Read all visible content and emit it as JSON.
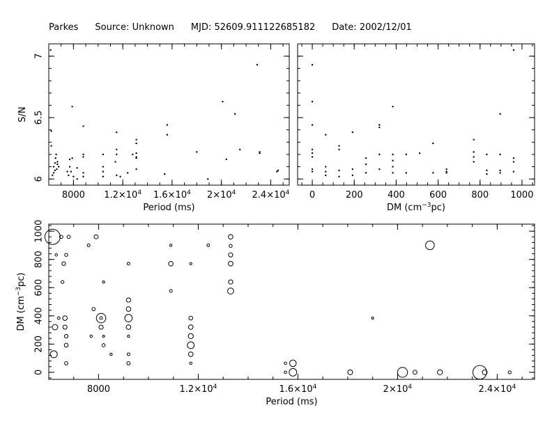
{
  "header": {
    "telescope": "Parkes",
    "source": "Source: Unknown",
    "mjd": "MJD: 52609.911122685182",
    "date": "Date: 2002/12/01"
  },
  "chart_data": [
    {
      "id": "snr-vs-period",
      "type": "scatter",
      "xlabel": "Period (ms)",
      "ylabel": "S/N",
      "xlim": [
        6000,
        25500
      ],
      "ylim": [
        5.95,
        7.1
      ],
      "xticks": [
        8000,
        12000,
        16000,
        20000,
        24000
      ],
      "xtick_labels": [
        [
          "8000",
          ""
        ],
        [
          "1.2×10",
          "4"
        ],
        [
          "1.6×10",
          "4"
        ],
        [
          "2×10",
          "4"
        ],
        [
          "2.4×10",
          "4"
        ]
      ],
      "yticks": [
        6,
        6.5,
        7
      ],
      "ytick_labels": [
        "6",
        "6.5",
        "7"
      ],
      "points": [
        [
          6150,
          7.05
        ],
        [
          6200,
          6.39
        ],
        [
          6200,
          6.27
        ],
        [
          6300,
          6.03
        ],
        [
          6400,
          6.05
        ],
        [
          6400,
          6.1
        ],
        [
          6500,
          6.07
        ],
        [
          6500,
          6.13
        ],
        [
          6550,
          6.17
        ],
        [
          6600,
          6.2
        ],
        [
          6650,
          6.08
        ],
        [
          6700,
          6.12
        ],
        [
          6700,
          6.14
        ],
        [
          6800,
          6.1
        ],
        [
          7500,
          6.06
        ],
        [
          7600,
          6.03
        ],
        [
          7700,
          6.1
        ],
        [
          7700,
          6.16
        ],
        [
          7800,
          6.06
        ],
        [
          7900,
          6.17
        ],
        [
          7900,
          6.59
        ],
        [
          8000,
          6.02
        ],
        [
          8300,
          6.0
        ],
        [
          8300,
          6.09
        ],
        [
          8800,
          6.02
        ],
        [
          8800,
          6.05
        ],
        [
          8800,
          6.18
        ],
        [
          8800,
          6.2
        ],
        [
          8800,
          6.43
        ],
        [
          10400,
          6.02
        ],
        [
          10400,
          6.06
        ],
        [
          10400,
          6.1
        ],
        [
          10400,
          6.2
        ],
        [
          11400,
          6.14
        ],
        [
          11500,
          6.03
        ],
        [
          11500,
          6.2
        ],
        [
          11500,
          6.24
        ],
        [
          11500,
          6.38
        ],
        [
          11800,
          6.02
        ],
        [
          12400,
          6.05
        ],
        [
          12800,
          6.2
        ],
        [
          13100,
          6.08
        ],
        [
          13100,
          6.17
        ],
        [
          13100,
          6.18
        ],
        [
          13100,
          6.21
        ],
        [
          13100,
          6.29
        ],
        [
          13100,
          6.32
        ],
        [
          15400,
          6.04
        ],
        [
          15600,
          6.36
        ],
        [
          15600,
          6.44
        ],
        [
          18000,
          6.22
        ],
        [
          18900,
          6.0
        ],
        [
          20100,
          6.63
        ],
        [
          20400,
          6.16
        ],
        [
          21100,
          6.53
        ],
        [
          21500,
          6.24
        ],
        [
          22900,
          6.93
        ],
        [
          23100,
          6.21
        ],
        [
          23100,
          6.22
        ],
        [
          24500,
          6.06
        ],
        [
          24600,
          6.07
        ]
      ]
    },
    {
      "id": "snr-vs-dm",
      "type": "scatter",
      "xlabel": "DM (cm⁻³pc)",
      "ylabel": "S/N",
      "xlim": [
        -70,
        1060
      ],
      "ylim": [
        5.95,
        7.1
      ],
      "xticks": [
        0,
        200,
        400,
        600,
        800,
        1000
      ],
      "xtick_labels": [
        "0",
        "200",
        "400",
        "600",
        "800",
        "1000"
      ],
      "yticks": [
        6,
        6.5,
        7
      ],
      "points": [
        [
          0,
          6.93
        ],
        [
          0,
          6.63
        ],
        [
          0,
          6.44
        ],
        [
          0,
          6.24
        ],
        [
          0,
          6.21
        ],
        [
          0,
          6.18
        ],
        [
          0,
          6.08
        ],
        [
          0,
          6.06
        ],
        [
          64,
          6.36
        ],
        [
          64,
          6.1
        ],
        [
          64,
          6.06
        ],
        [
          64,
          6.03
        ],
        [
          128,
          6.27
        ],
        [
          128,
          6.24
        ],
        [
          128,
          6.07
        ],
        [
          128,
          6.02
        ],
        [
          192,
          6.38
        ],
        [
          192,
          6.08
        ],
        [
          192,
          6.03
        ],
        [
          256,
          6.17
        ],
        [
          256,
          6.12
        ],
        [
          256,
          6.05
        ],
        [
          320,
          6.44
        ],
        [
          320,
          6.42
        ],
        [
          320,
          6.2
        ],
        [
          320,
          6.08
        ],
        [
          384,
          6.59
        ],
        [
          384,
          6.2
        ],
        [
          384,
          6.15
        ],
        [
          384,
          6.1
        ],
        [
          384,
          6.05
        ],
        [
          448,
          6.2
        ],
        [
          448,
          6.05
        ],
        [
          512,
          6.21
        ],
        [
          576,
          6.29
        ],
        [
          576,
          6.05
        ],
        [
          640,
          6.08
        ],
        [
          640,
          6.06
        ],
        [
          640,
          6.05
        ],
        [
          770,
          6.32
        ],
        [
          770,
          6.22
        ],
        [
          770,
          6.18
        ],
        [
          770,
          6.14
        ],
        [
          832,
          6.2
        ],
        [
          832,
          6.07
        ],
        [
          832,
          6.04
        ],
        [
          896,
          6.53
        ],
        [
          896,
          6.2
        ],
        [
          896,
          6.07
        ],
        [
          896,
          6.05
        ],
        [
          960,
          7.05
        ],
        [
          960,
          6.17
        ],
        [
          960,
          6.14
        ],
        [
          960,
          6.06
        ]
      ]
    },
    {
      "id": "dm-vs-period",
      "type": "scatter",
      "xlabel": "Period (ms)",
      "ylabel": "DM (cm⁻³pc)",
      "xlim": [
        6000,
        25500
      ],
      "ylim": [
        -50,
        1050
      ],
      "xticks": [
        8000,
        12000,
        16000,
        20000,
        24000
      ],
      "xtick_labels": [
        [
          "8000",
          ""
        ],
        [
          "1.2×10",
          "4"
        ],
        [
          "1.6×10",
          "4"
        ],
        [
          "2×10",
          "4"
        ],
        [
          "2.4×10",
          "4"
        ]
      ],
      "yticks": [
        0,
        200,
        400,
        600,
        800,
        1000
      ],
      "ytick_labels": [
        "0",
        "200",
        "400",
        "600",
        "800",
        "1000"
      ],
      "points": [
        [
          6150,
          960,
          7.05
        ],
        [
          6200,
          128,
          6.39
        ],
        [
          6250,
          320,
          6.27
        ],
        [
          6300,
          832,
          6.03
        ],
        [
          6400,
          384,
          6.05
        ],
        [
          6500,
          960,
          6.1
        ],
        [
          6550,
          640,
          6.07
        ],
        [
          6600,
          770,
          6.13
        ],
        [
          6650,
          320,
          6.17
        ],
        [
          6650,
          384,
          6.2
        ],
        [
          6700,
          832,
          6.08
        ],
        [
          6700,
          256,
          6.12
        ],
        [
          6700,
          192,
          6.14
        ],
        [
          6700,
          64,
          6.1
        ],
        [
          6800,
          960,
          6.1
        ],
        [
          7600,
          900,
          6.06
        ],
        [
          7700,
          256,
          6.03
        ],
        [
          7800,
          448,
          6.1
        ],
        [
          7900,
          960,
          6.16
        ],
        [
          8100,
          384,
          6.06
        ],
        [
          8100,
          384,
          6.59
        ],
        [
          8100,
          320,
          6.17
        ],
        [
          8200,
          640,
          6.02
        ],
        [
          8200,
          256,
          6.0
        ],
        [
          8200,
          192,
          6.09
        ],
        [
          8500,
          128,
          6.02
        ],
        [
          9200,
          770,
          6.05
        ],
        [
          9200,
          512,
          6.18
        ],
        [
          9200,
          448,
          6.2
        ],
        [
          9200,
          384,
          6.43
        ],
        [
          9200,
          320,
          6.2
        ],
        [
          9200,
          256,
          6.02
        ],
        [
          9200,
          128,
          6.06
        ],
        [
          9200,
          64,
          6.1
        ],
        [
          10900,
          900,
          6.02
        ],
        [
          10900,
          770,
          6.2
        ],
        [
          10900,
          576,
          6.06
        ],
        [
          11700,
          770,
          6.02
        ],
        [
          11700,
          384,
          6.14
        ],
        [
          11700,
          320,
          6.2
        ],
        [
          11700,
          256,
          6.24
        ],
        [
          11700,
          192,
          6.38
        ],
        [
          11700,
          128,
          6.2
        ],
        [
          11700,
          64,
          6.03
        ],
        [
          12400,
          900,
          6.05
        ],
        [
          13300,
          960,
          6.2
        ],
        [
          13300,
          896,
          6.08
        ],
        [
          13300,
          832,
          6.17
        ],
        [
          13300,
          770,
          6.21
        ],
        [
          13300,
          640,
          6.18
        ],
        [
          13300,
          576,
          6.32
        ],
        [
          15500,
          64,
          6.04
        ],
        [
          15500,
          0,
          6.04
        ],
        [
          15800,
          64,
          6.36
        ],
        [
          15800,
          0,
          6.44
        ],
        [
          18100,
          0,
          6.22
        ],
        [
          19000,
          384,
          6.0
        ],
        [
          20200,
          0,
          6.63
        ],
        [
          20700,
          0,
          6.16
        ],
        [
          21300,
          900,
          6.53
        ],
        [
          21700,
          0,
          6.24
        ],
        [
          23300,
          0,
          6.93
        ],
        [
          23500,
          0,
          6.22
        ],
        [
          24500,
          0,
          6.07
        ]
      ]
    }
  ]
}
